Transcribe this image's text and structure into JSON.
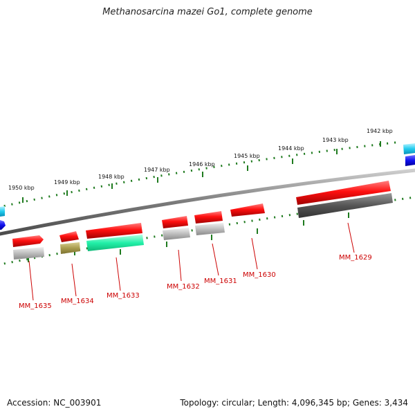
{
  "title": "Methanosarcina mazei Go1, complete genome",
  "footer": {
    "accession": "Accession: NC_003901",
    "summary": "Topology: circular; Length: 4,096,345 bp; Genes: 3,434"
  },
  "colors": {
    "backbone": "#8a8a8a",
    "tick": "#1e7a1e",
    "label": "#cc0000",
    "tick_label": "#111111"
  },
  "scale": {
    "ticks": [
      "1950 kbp",
      "1949 kbp",
      "1948 kbp",
      "1947 kbp",
      "1946 kbp",
      "1945 kbp",
      "1944 kbp",
      "1943 kbp",
      "1942 kbp"
    ]
  },
  "genes": [
    {
      "label": "MM_1635",
      "color": "#dd0000"
    },
    {
      "label": "MM_1634",
      "color": "#dd0000"
    },
    {
      "label": "MM_1633",
      "color": "#dd0000"
    },
    {
      "label": "MM_1632",
      "color": "#dd0000"
    },
    {
      "label": "MM_1631",
      "color": "#dd0000"
    },
    {
      "label": "MM_1630",
      "color": "#dd0000"
    },
    {
      "label": "MM_1629",
      "color": "#dd0000"
    }
  ]
}
